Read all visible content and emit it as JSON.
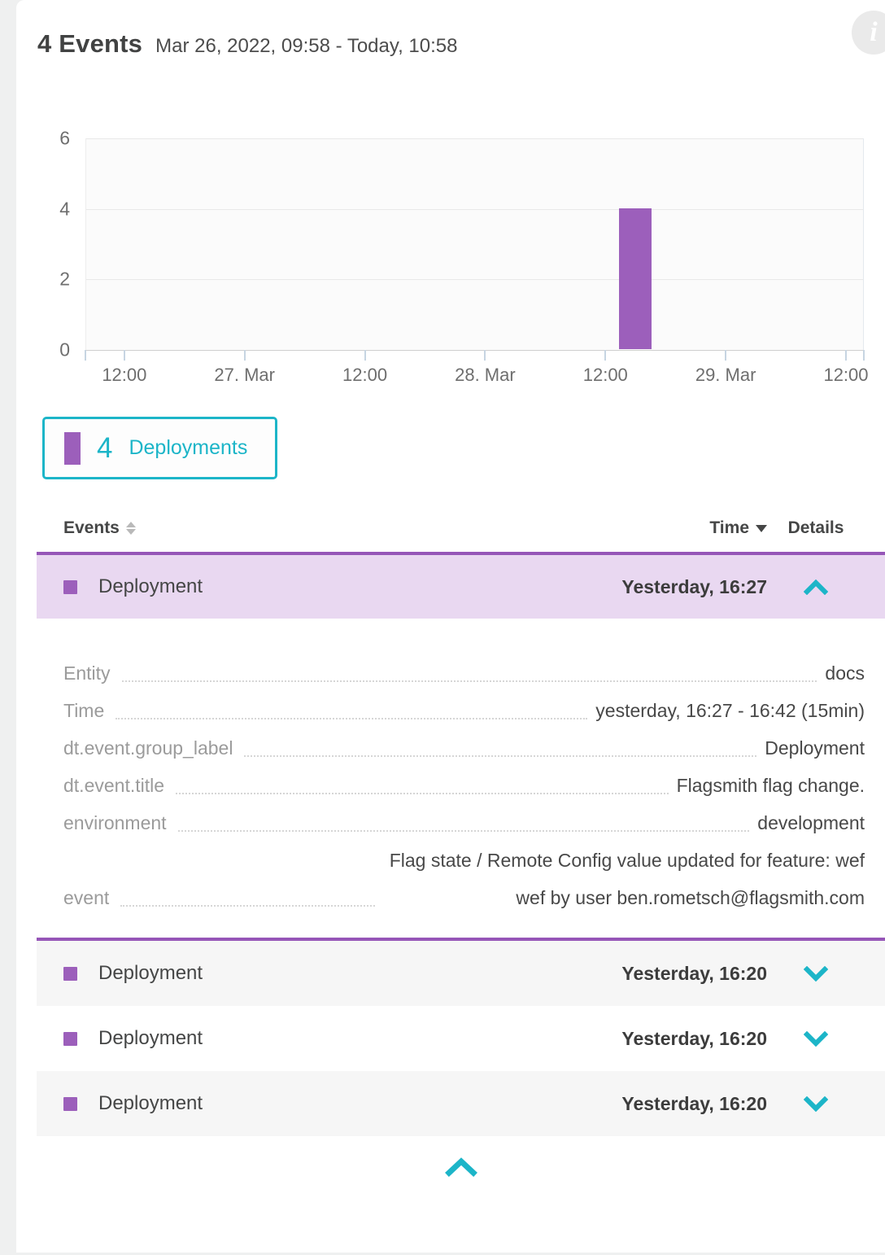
{
  "colors": {
    "teal": "#1cb5c8",
    "purple": "#9c5fbb",
    "purple_border": "#9656b8",
    "row_purple_bg": "#e9d8f1",
    "row_alt_bg": "#f6f6f6"
  },
  "header": {
    "title": "4 Events",
    "timerange": "Mar 26, 2022, 09:58 - Today, 10:58"
  },
  "info_icon_glyph": "i",
  "chart_data": {
    "type": "bar",
    "title": "",
    "xlabel": "",
    "ylabel": "",
    "grid": true,
    "legend_position": "below-left",
    "y_axis": {
      "ticks": [
        6,
        4,
        2,
        0
      ],
      "min": 0,
      "max": 6
    },
    "x_axis": {
      "tick_labels": [
        "12:00",
        "27. Mar",
        "12:00",
        "28. Mar",
        "12:00",
        "29. Mar",
        "12:00"
      ],
      "tick_pos_pct": [
        5.0,
        20.45,
        35.9,
        51.35,
        66.8,
        82.25,
        97.7
      ],
      "edge_tick_pos_pct": [
        0,
        100
      ]
    },
    "series": [
      {
        "name": "Deployments",
        "color": "#9c5fbb",
        "bars": [
          {
            "x": "Mar 28, ~13:30",
            "value": 4,
            "pos_pct": 68.6,
            "width_pct": 4.2
          }
        ]
      }
    ]
  },
  "legend": {
    "count": "4",
    "label": "Deployments"
  },
  "table": {
    "columns": [
      {
        "label": "Events",
        "sort": "both"
      },
      {
        "label": "Time",
        "sort": "desc"
      },
      {
        "label": "Details",
        "sort": null
      }
    ],
    "rows": [
      {
        "event": "Deployment",
        "time": "Yesterday, 16:27",
        "expanded": true
      },
      {
        "event": "Deployment",
        "time": "Yesterday, 16:20",
        "expanded": false
      },
      {
        "event": "Deployment",
        "time": "Yesterday, 16:20",
        "expanded": false
      },
      {
        "event": "Deployment",
        "time": "Yesterday, 16:20",
        "expanded": false
      }
    ],
    "details": [
      {
        "label": "Entity",
        "value": "docs"
      },
      {
        "label": "Time",
        "value": "yesterday, 16:27 - 16:42 (15min)"
      },
      {
        "label": "dt.event.group_label",
        "value": "Deployment"
      },
      {
        "label": "dt.event.title",
        "value": "Flagsmith flag change."
      },
      {
        "label": "environment",
        "value": "development"
      },
      {
        "label": "event",
        "value": "Flag state / Remote Config value updated for feature: wefwef by user ben.rometsch@flagsmith.com"
      }
    ]
  }
}
